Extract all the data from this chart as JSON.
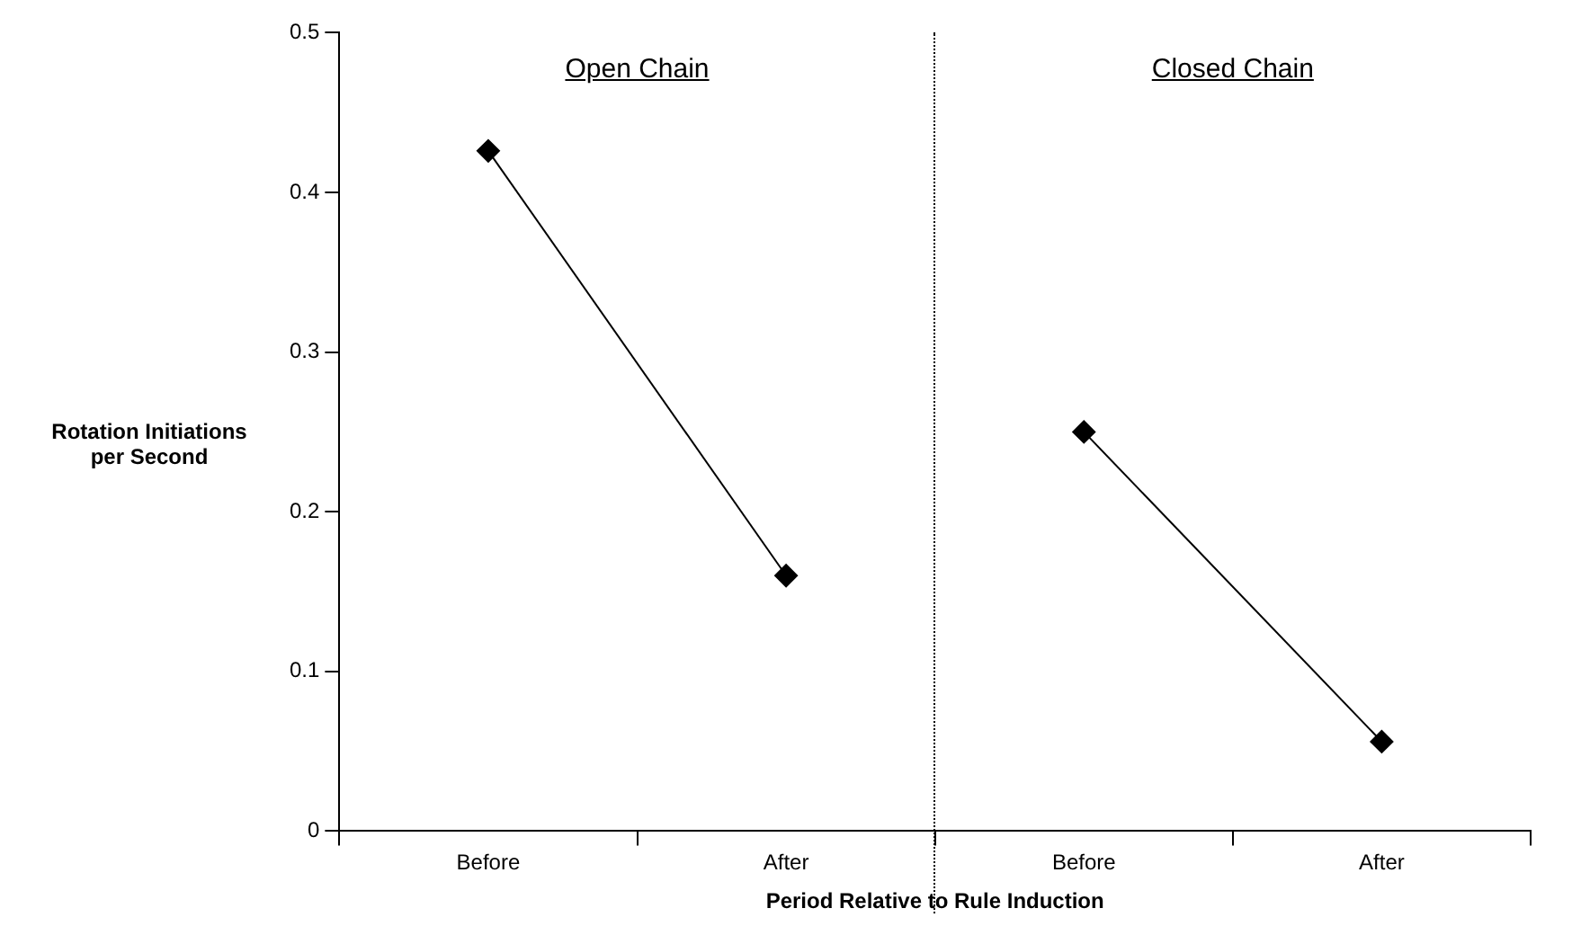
{
  "chart_data": {
    "type": "line",
    "xlabel": "Period Relative to Rule Induction",
    "ylabel": "Rotation Initiations per Second",
    "categories": [
      "Before",
      "After",
      "Before",
      "After"
    ],
    "annotations": [
      "Open Chain",
      "Closed Chain"
    ],
    "series": [
      {
        "color": "#000000",
        "values": [
          0.426,
          0.16,
          null,
          null
        ]
      },
      {
        "color": "#000000",
        "values": [
          null,
          null,
          0.25,
          0.056
        ]
      }
    ],
    "ylim": [
      0,
      0.5
    ],
    "yticks": [
      0,
      0.1,
      0.2,
      0.3,
      0.4,
      0.5
    ],
    "grid": false,
    "legend": false,
    "marker": "diamond",
    "line_style": "solid"
  }
}
